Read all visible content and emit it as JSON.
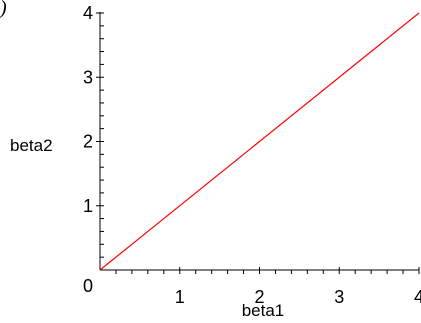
{
  "corner_mark": ")",
  "chart_data": {
    "type": "line",
    "xlabel": "beta1",
    "ylabel": "beta2",
    "xlim": [
      0,
      4
    ],
    "ylim": [
      0,
      4
    ],
    "x_ticks": [
      1,
      2,
      3,
      4
    ],
    "y_ticks": [
      0,
      1,
      2,
      3,
      4
    ],
    "grid": false,
    "series": [
      {
        "color": "#ff0000",
        "x": [
          0,
          4
        ],
        "y": [
          0,
          4
        ]
      }
    ]
  }
}
